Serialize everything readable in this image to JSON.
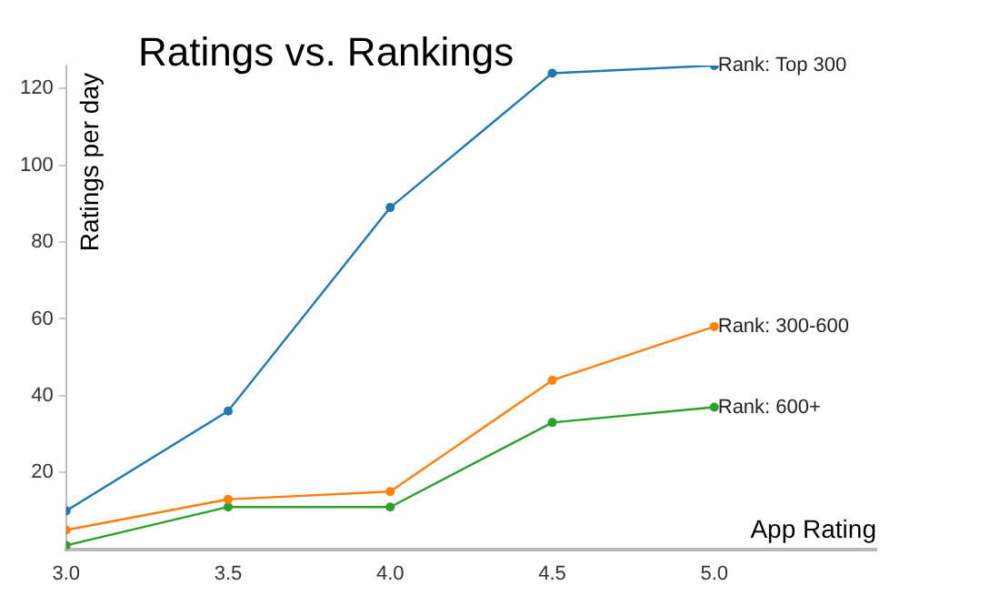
{
  "chart_data": {
    "type": "line",
    "title": "Ratings vs. Rankings",
    "xlabel": "App Rating",
    "ylabel": "Ratings per day",
    "x": [
      3.0,
      3.5,
      4.0,
      4.5,
      5.0
    ],
    "series": [
      {
        "name": "Rank: Top 300",
        "color": "#1f77b4",
        "values": [
          10,
          36,
          89,
          124,
          126
        ]
      },
      {
        "name": "Rank: 300-600",
        "color": "#ff7f0e",
        "values": [
          5,
          13,
          15,
          44,
          58
        ]
      },
      {
        "name": "Rank: 600+",
        "color": "#2ca02c",
        "values": [
          1,
          11,
          11,
          33,
          37
        ]
      }
    ],
    "xlim": [
      3.0,
      5.5
    ],
    "xticks": [
      {
        "value": 3.0,
        "label": "3.0"
      },
      {
        "value": 3.5,
        "label": "3.5"
      },
      {
        "value": 4.0,
        "label": "4.0"
      },
      {
        "value": 4.5,
        "label": "4.5"
      },
      {
        "value": 5.0,
        "label": "5.0"
      }
    ],
    "ylim": [
      0,
      126
    ],
    "yticks": [
      20,
      40,
      60,
      80,
      100,
      120
    ],
    "grid": false,
    "legend": false,
    "marker": "circle",
    "line_style": "solid"
  }
}
